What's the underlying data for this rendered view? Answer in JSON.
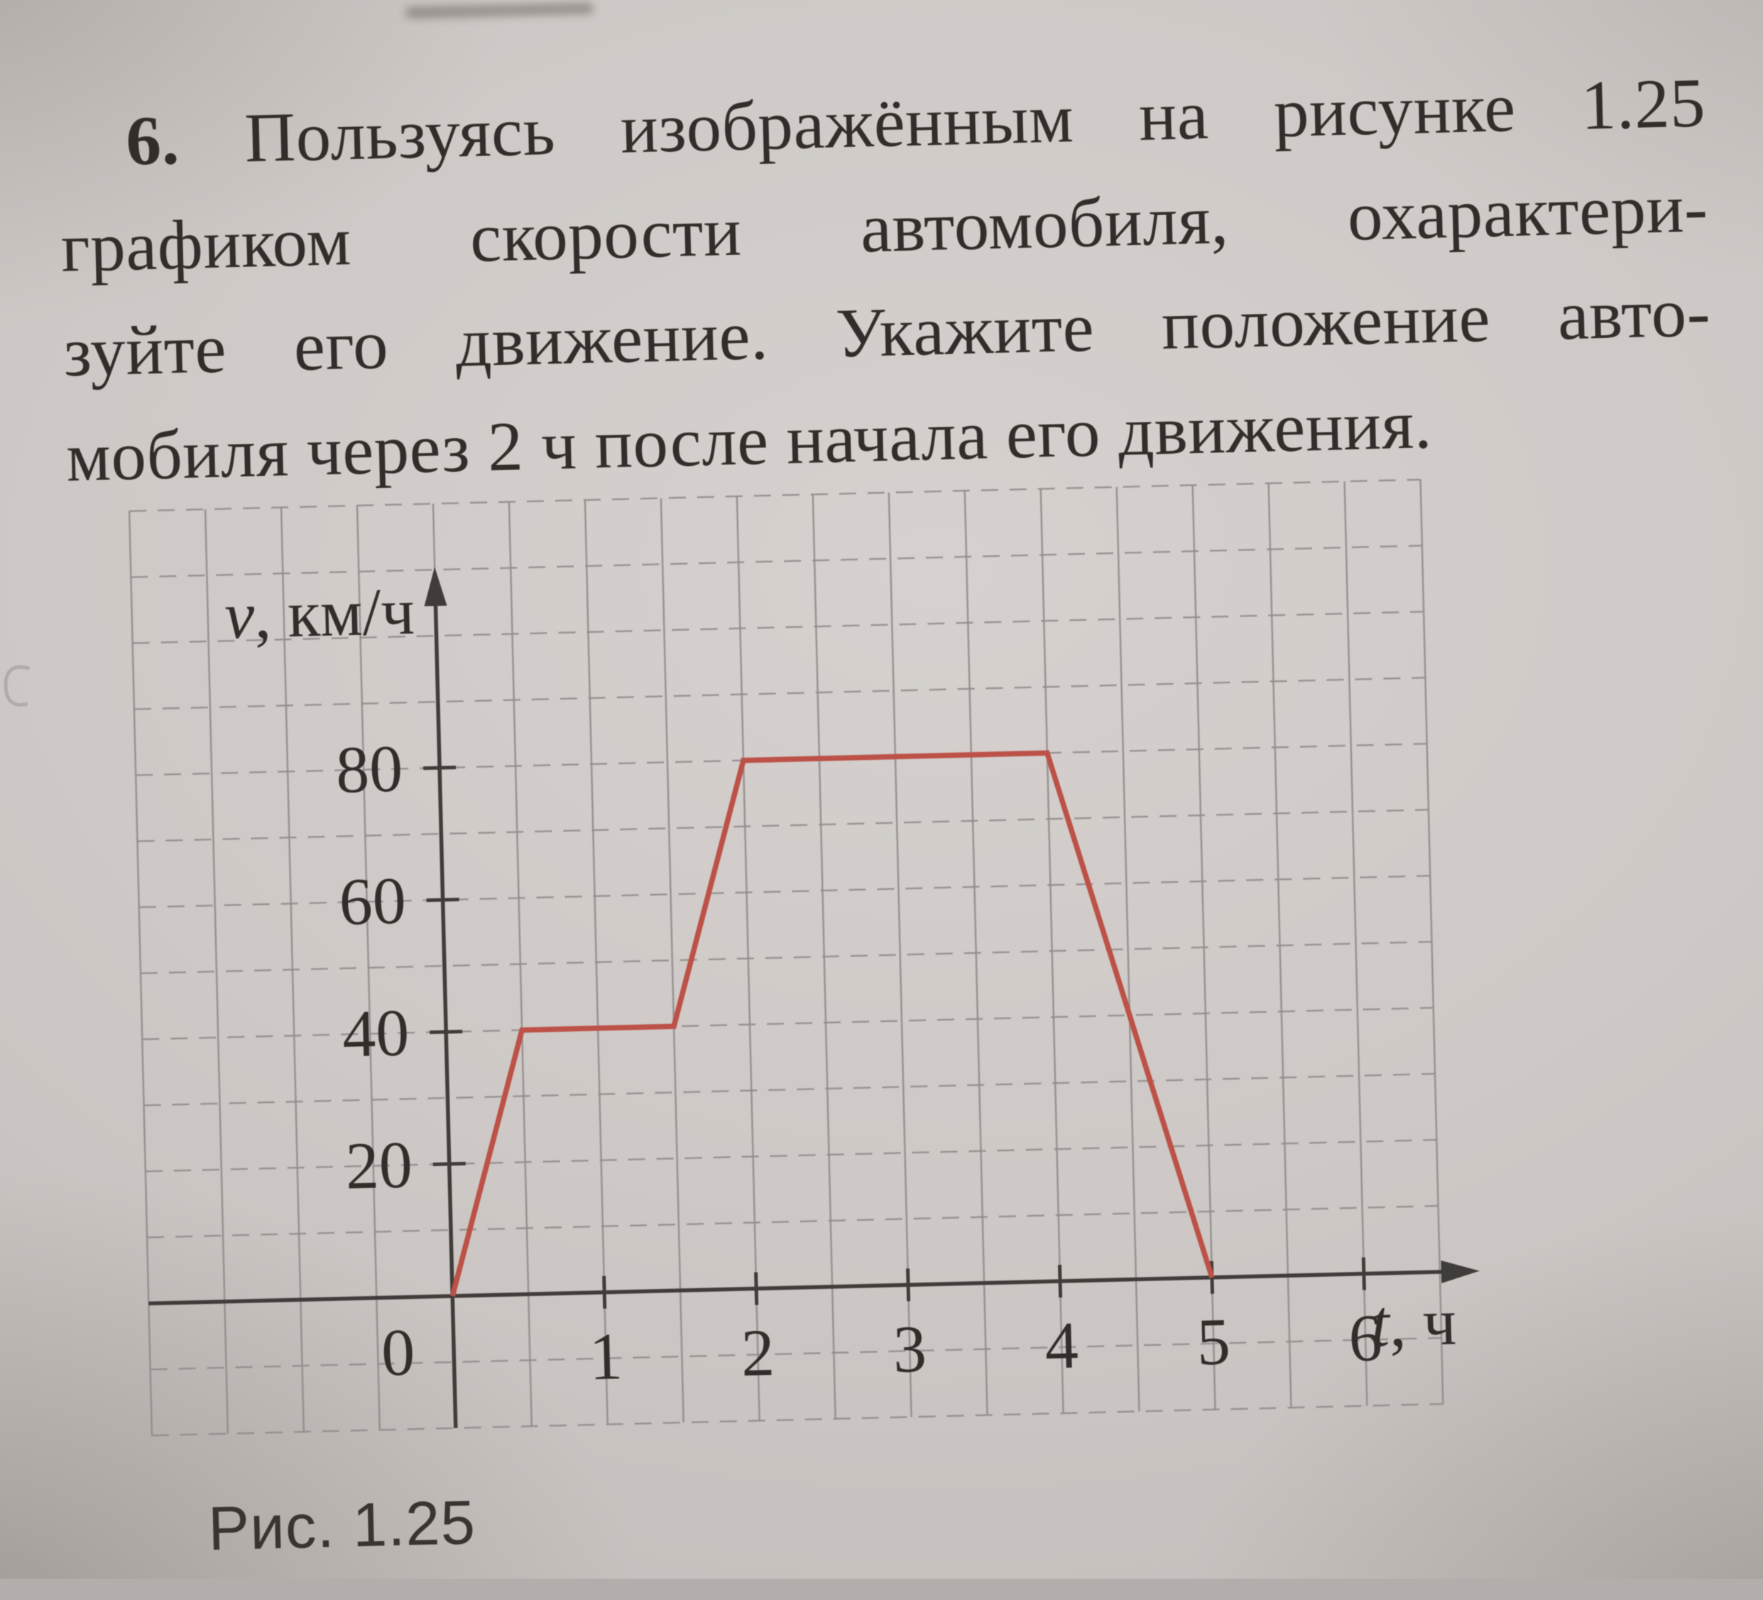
{
  "problem": {
    "number": "6.",
    "lines": [
      "Пользуясь изображённым на рисунке 1.25",
      "графиком скорости автомобиля, охарактери-",
      "зуйте его движение. Укажите положение авто-",
      "мобиля через 2 ч после начала его движения."
    ]
  },
  "figure": {
    "caption": "Рис. 1.25",
    "origin_label": "0",
    "y_axis_label": {
      "italic": "v",
      "rest": ", км/ч"
    },
    "x_axis_label": {
      "italic": "t",
      "rest": ", ч"
    }
  },
  "chart_data": {
    "type": "line",
    "title": "",
    "xlabel": "t, ч",
    "ylabel": "v, км/ч",
    "x": [
      0,
      0.5,
      1.5,
      2,
      4,
      5
    ],
    "y": [
      0,
      40,
      40,
      80,
      80,
      0
    ],
    "x_ticks": [
      1,
      2,
      3,
      4,
      5,
      6
    ],
    "y_ticks": [
      20,
      40,
      60,
      80
    ],
    "xlim": [
      -2,
      6.5
    ],
    "ylim": [
      -20,
      120
    ],
    "x_grid_step": 0.5,
    "y_grid_step": 10,
    "grid": true,
    "legend": false
  },
  "colors": {
    "paper": "#cbc6c3",
    "ink": "#322d2a",
    "curve": "#bc5148",
    "grid": "#8f8b8c",
    "axis": "#403c3a"
  }
}
